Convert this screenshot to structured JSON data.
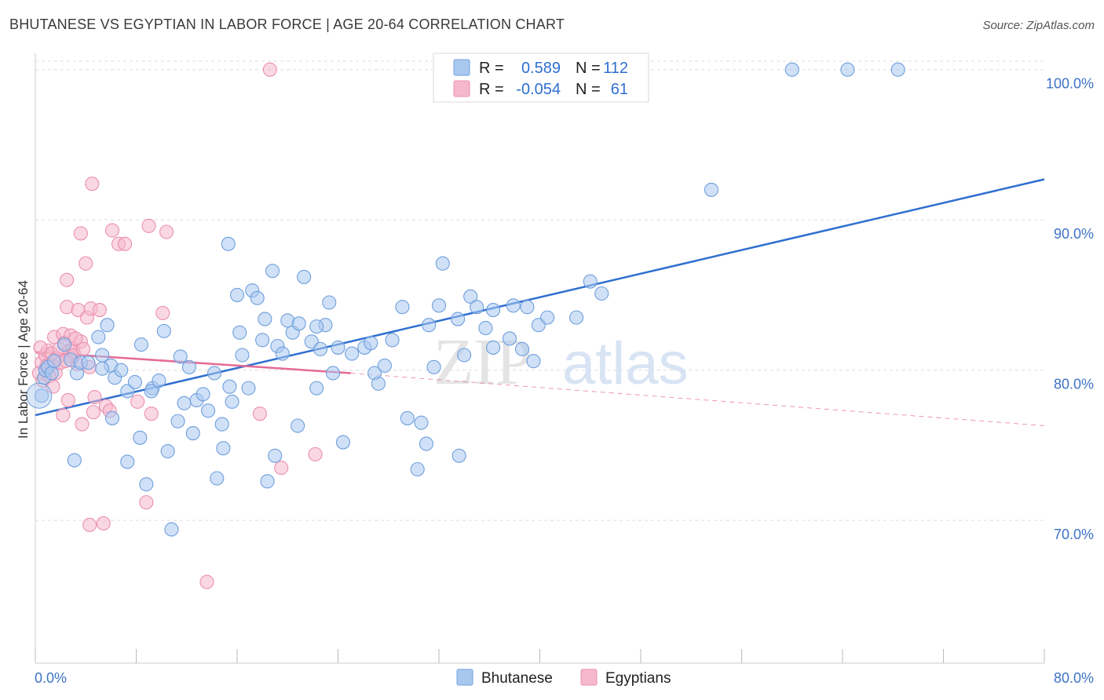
{
  "title": "BHUTANESE VS EGYPTIAN IN LABOR FORCE | AGE 20-64 CORRELATION CHART",
  "source": "Source: ZipAtlas.com",
  "watermark": {
    "zip": "ZIP",
    "atlas": "atlas"
  },
  "colors": {
    "bhutanese_fill": "#a9c8f0",
    "bhutanese_stroke": "#6f9fdc",
    "bhutanese_line": "#2e6fd0",
    "egyptians_fill": "#f6b8cc",
    "egyptians_stroke": "#ea8fae",
    "egyptians_line": "#e56a96",
    "tick_text": "#3d73c7",
    "grid": "#dddddd"
  },
  "legend": {
    "rows": [
      {
        "r_label": "R =",
        "r_value": "0.589",
        "n_label": "N =",
        "n_value": "112"
      },
      {
        "r_label": "R =",
        "r_value": "-0.054",
        "n_label": "N =",
        "n_value": "61"
      }
    ]
  },
  "chart_data": {
    "type": "scatter",
    "title": "BHUTANESE VS EGYPTIAN IN LABOR FORCE | AGE 20-64 CORRELATION CHART",
    "xlabel": "",
    "ylabel": "In Labor Force | Age 20-64",
    "xlim": [
      0,
      80
    ],
    "ylim": [
      60.5,
      101.5
    ],
    "x_tick_labels": [
      "0.0%",
      "80.0%"
    ],
    "y_ticks": [
      70,
      80,
      90,
      100
    ],
    "y_tick_labels": [
      "70.0%",
      "80.0%",
      "90.0%",
      "100.0%"
    ],
    "grid": true,
    "legend_position": "top-center",
    "series": [
      {
        "name": "Bhutanese",
        "trend": {
          "x": [
            0,
            80
          ],
          "y": [
            77.0,
            92.7
          ],
          "style": "solid"
        },
        "points": [
          [
            0.5,
            78.3
          ],
          [
            0.7,
            79.5
          ],
          [
            0.8,
            80
          ],
          [
            1,
            80.2
          ],
          [
            1.3,
            79.8
          ],
          [
            1.5,
            80.6
          ],
          [
            2.3,
            81.7
          ],
          [
            2.8,
            80.7
          ],
          [
            3.3,
            79.8
          ],
          [
            3.6,
            80.5
          ],
          [
            4.2,
            80.5
          ],
          [
            5,
            82.2
          ],
          [
            5.3,
            81
          ],
          [
            5.7,
            83
          ],
          [
            6,
            80.3
          ],
          [
            6.3,
            79.5
          ],
          [
            6.8,
            80
          ],
          [
            7.3,
            78.6
          ],
          [
            7.9,
            79.2
          ],
          [
            8.3,
            75.5
          ],
          [
            8.4,
            81.7
          ],
          [
            8.8,
            72.4
          ],
          [
            9.3,
            78.8
          ],
          [
            9.8,
            79.3
          ],
          [
            10.2,
            82.6
          ],
          [
            10.5,
            74.6
          ],
          [
            10.8,
            69.4
          ],
          [
            11.5,
            80.9
          ],
          [
            11.8,
            77.8
          ],
          [
            12.2,
            80.2
          ],
          [
            12.5,
            75.8
          ],
          [
            12.8,
            78
          ],
          [
            13.3,
            78.4
          ],
          [
            13.7,
            77.3
          ],
          [
            14.2,
            79.8
          ],
          [
            14.4,
            72.8
          ],
          [
            14.8,
            76.4
          ],
          [
            15.4,
            78.9
          ],
          [
            15.3,
            88.4
          ],
          [
            15.6,
            77.9
          ],
          [
            16,
            85
          ],
          [
            16.2,
            82.5
          ],
          [
            16.4,
            81
          ],
          [
            16.9,
            78.8
          ],
          [
            17.2,
            85.3
          ],
          [
            17.6,
            84.8
          ],
          [
            18,
            82
          ],
          [
            18.2,
            83.4
          ],
          [
            18.4,
            72.6
          ],
          [
            18.8,
            86.6
          ],
          [
            19,
            74.3
          ],
          [
            19.2,
            81.6
          ],
          [
            19.6,
            81.1
          ],
          [
            20,
            83.3
          ],
          [
            20.4,
            82.5
          ],
          [
            20.8,
            76.3
          ],
          [
            20.9,
            83.1
          ],
          [
            21.3,
            86.2
          ],
          [
            21.9,
            81.9
          ],
          [
            22.3,
            78.8
          ],
          [
            22.6,
            81.4
          ],
          [
            23,
            83
          ],
          [
            23.3,
            84.5
          ],
          [
            23.6,
            79.8
          ],
          [
            24,
            81.5
          ],
          [
            24.4,
            75.2
          ],
          [
            25.1,
            81.1
          ],
          [
            26.1,
            81.5
          ],
          [
            26.6,
            81.8
          ],
          [
            26.9,
            79.8
          ],
          [
            27.2,
            79.1
          ],
          [
            28.3,
            82
          ],
          [
            29.1,
            84.2
          ],
          [
            30.3,
            73.4
          ],
          [
            30.6,
            76.5
          ],
          [
            31,
            75.1
          ],
          [
            31.2,
            83
          ],
          [
            32,
            84.3
          ],
          [
            32.3,
            87.1
          ],
          [
            33.5,
            83.4
          ],
          [
            33.6,
            74.3
          ],
          [
            34,
            81
          ],
          [
            34.5,
            84.9
          ],
          [
            35,
            84.2
          ],
          [
            35.7,
            82.8
          ],
          [
            36.3,
            84
          ],
          [
            37.6,
            82.1
          ],
          [
            37.9,
            84.3
          ],
          [
            38.6,
            81.4
          ],
          [
            39,
            84.2
          ],
          [
            39.5,
            80.6
          ],
          [
            39.9,
            83
          ],
          [
            40.6,
            83.5
          ],
          [
            42.9,
            83.5
          ],
          [
            44,
            85.9
          ],
          [
            44.9,
            85.1
          ],
          [
            53.6,
            92
          ],
          [
            60,
            100
          ],
          [
            64.4,
            100
          ],
          [
            68.4,
            100
          ],
          [
            5.3,
            80.1
          ],
          [
            6.1,
            76.8
          ],
          [
            9.2,
            78.6
          ],
          [
            11.3,
            76.6
          ],
          [
            14.9,
            74.8
          ],
          [
            22.3,
            82.9
          ],
          [
            27.7,
            80.3
          ],
          [
            3.1,
            74
          ],
          [
            7.3,
            73.9
          ],
          [
            29.5,
            76.8
          ],
          [
            31.6,
            80.2
          ],
          [
            36.3,
            81.5
          ]
        ]
      },
      {
        "name": "Egyptians",
        "trend": {
          "x": [
            0,
            25
          ],
          "y": [
            81.2,
            79.8
          ],
          "style": "solid",
          "dashed_extension": {
            "x": [
              25,
              80
            ],
            "y": [
              79.8,
              76.3
            ]
          }
        },
        "points": [
          [
            0.3,
            79.8
          ],
          [
            0.5,
            80.5
          ],
          [
            0.6,
            79.3
          ],
          [
            0.8,
            81
          ],
          [
            0.9,
            80.3
          ],
          [
            1,
            81.3
          ],
          [
            1.2,
            80.4
          ],
          [
            1.3,
            81.1
          ],
          [
            1.5,
            82.2
          ],
          [
            1.6,
            79.8
          ],
          [
            1.7,
            80.8
          ],
          [
            1.9,
            81.4
          ],
          [
            2,
            80.5
          ],
          [
            2.2,
            82.4
          ],
          [
            2.2,
            77
          ],
          [
            2.3,
            81.8
          ],
          [
            2.5,
            84.2
          ],
          [
            2.5,
            86
          ],
          [
            2.6,
            78
          ],
          [
            2.7,
            81.3
          ],
          [
            2.8,
            82.3
          ],
          [
            2.9,
            80.9
          ],
          [
            3,
            81.4
          ],
          [
            3.1,
            81
          ],
          [
            3.3,
            80.4
          ],
          [
            3.4,
            84
          ],
          [
            3.6,
            81.9
          ],
          [
            3.6,
            89.1
          ],
          [
            3.7,
            76.4
          ],
          [
            3.8,
            81.4
          ],
          [
            4,
            87.1
          ],
          [
            4.1,
            83.5
          ],
          [
            4.3,
            80.2
          ],
          [
            4.3,
            69.7
          ],
          [
            4.4,
            84.1
          ],
          [
            4.5,
            92.4
          ],
          [
            4.6,
            77.2
          ],
          [
            4.7,
            78.2
          ],
          [
            5.1,
            84
          ],
          [
            5.4,
            69.8
          ],
          [
            5.6,
            77.6
          ],
          [
            5.9,
            77.3
          ],
          [
            6.1,
            89.3
          ],
          [
            6.6,
            88.4
          ],
          [
            7.1,
            88.4
          ],
          [
            8.1,
            77.9
          ],
          [
            8.8,
            71.2
          ],
          [
            9,
            89.6
          ],
          [
            9.2,
            77.1
          ],
          [
            10.1,
            83.8
          ],
          [
            10.4,
            89.2
          ],
          [
            13.6,
            65.9
          ],
          [
            17.8,
            77.1
          ],
          [
            18.6,
            100
          ],
          [
            19.5,
            73.5
          ],
          [
            22.2,
            74.4
          ],
          [
            1.1,
            79.6
          ],
          [
            2.4,
            80.6
          ],
          [
            1.4,
            78.9
          ],
          [
            0.4,
            81.5
          ],
          [
            3.2,
            82.1
          ]
        ]
      }
    ]
  },
  "bottom_legend": [
    "Bhutanese",
    "Egyptians"
  ]
}
